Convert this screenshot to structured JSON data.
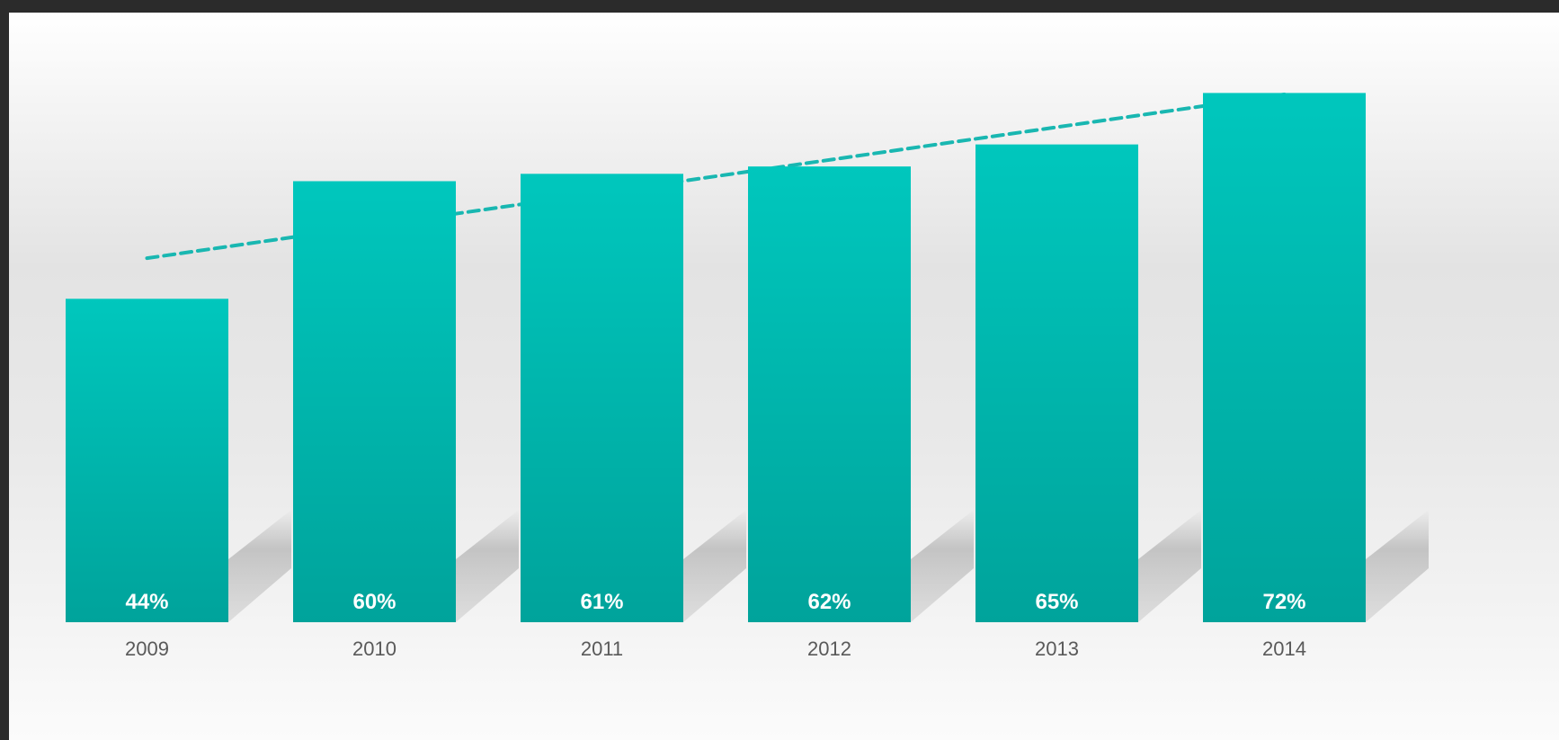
{
  "colors": {
    "bar_top": "#00c7bd",
    "bar_bottom": "#00a39b",
    "trend": "#19b7b1",
    "label": "#ffffff",
    "tick": "#595959"
  },
  "chart_data": {
    "type": "bar",
    "categories": [
      "2009",
      "2010",
      "2011",
      "2012",
      "2013",
      "2014"
    ],
    "values": [
      44,
      60,
      61,
      62,
      65,
      72
    ],
    "data_labels": [
      "44%",
      "60%",
      "61%",
      "62%",
      "65%",
      "72%"
    ],
    "value_format": "percent",
    "ylim": [
      0,
      80
    ],
    "trendline": {
      "type": "linear",
      "style": "dashed"
    },
    "title": "",
    "xlabel": "",
    "ylabel": "",
    "grid": false,
    "legend": "none"
  }
}
